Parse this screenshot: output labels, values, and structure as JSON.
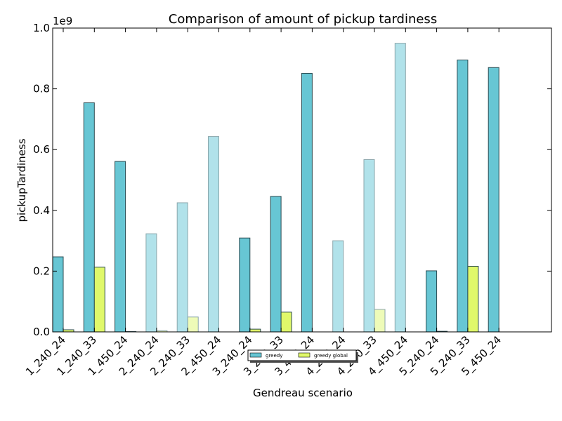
{
  "chart_data": {
    "type": "bar",
    "title": "Comparison of amount of pickup tardiness",
    "xlabel": "Gendreau scenario",
    "ylabel": "pickupTardiness",
    "scale_label": "1e9",
    "ylim": [
      0,
      1.0
    ],
    "yticks": [
      "0.0",
      "0.2",
      "0.4",
      "0.6",
      "0.8",
      "1.0"
    ],
    "categories": [
      "1_240_24",
      "1_240_33",
      "1_450_24",
      "2_240_24",
      "2_240_33",
      "2_450_24",
      "3_240_24",
      "3_240_33",
      "3_450_24",
      "4_240_24",
      "4_240_33",
      "4_450_24",
      "5_240_24",
      "5_240_33",
      "5_450_24"
    ],
    "series": [
      {
        "name": "greedy",
        "color": "#67c6d4",
        "values": [
          0.247,
          0.754,
          0.561,
          0.323,
          0.425,
          0.643,
          0.309,
          0.446,
          0.851,
          0.3,
          0.567,
          0.95,
          0.201,
          0.895,
          0.87
        ]
      },
      {
        "name": "greedy global",
        "color": "#e0f86a",
        "values": [
          0.007,
          0.213,
          0.001,
          0.004,
          0.049,
          0.0,
          0.009,
          0.065,
          0.0,
          0.0,
          0.074,
          0.0,
          0.002,
          0.216,
          0.0
        ]
      }
    ],
    "faded_categories": [
      3,
      4,
      5,
      9,
      10,
      11
    ],
    "grid": false,
    "legend_position": "bottom-center"
  }
}
